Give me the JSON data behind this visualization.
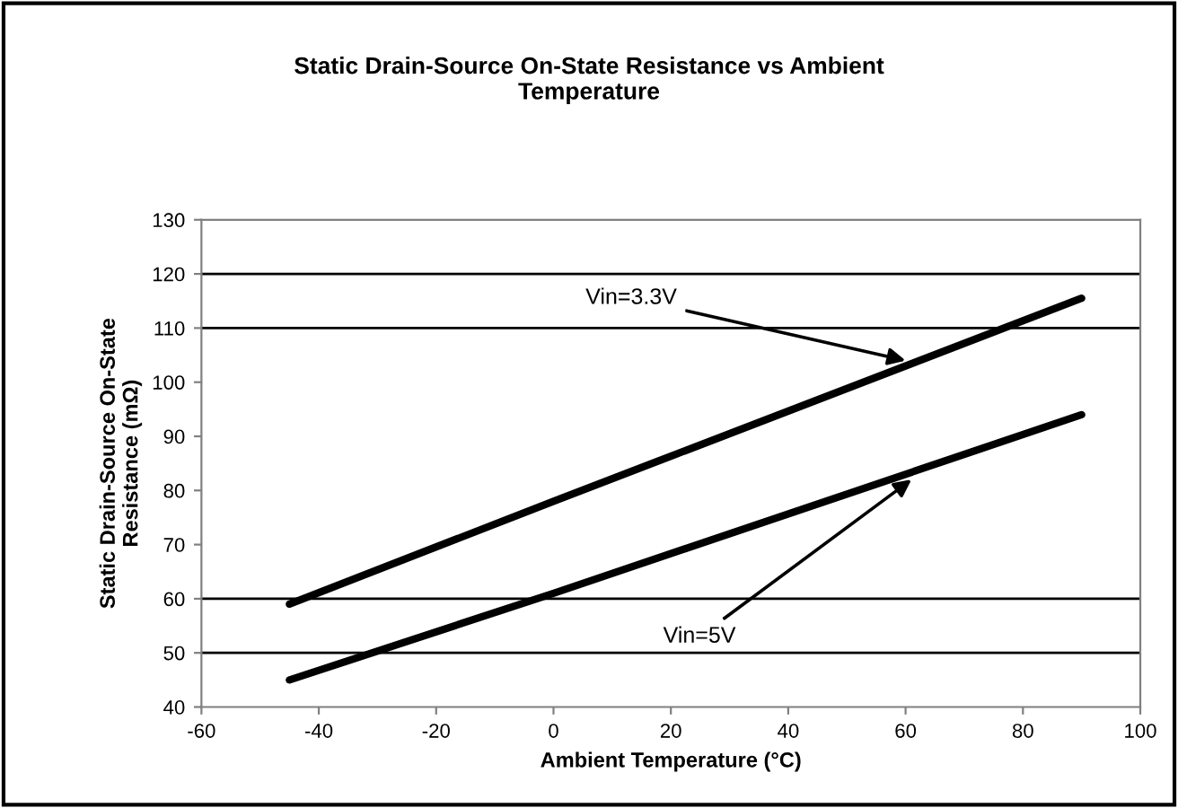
{
  "chart_data": {
    "type": "line",
    "title": "Static Drain-Source On-State Resistance vs Ambient\nTemperature",
    "xlabel": "Ambient Temperature (°C)",
    "ylabel": "Static Drain-Source On-State\nResistance (mΩ)",
    "series": [
      {
        "color": "#000000",
        "x": [
          -45,
          0,
          90
        ],
        "values": [
          59,
          78,
          115.5
        ]
      },
      {
        "color": "#000000",
        "x": [
          -45,
          0,
          90
        ],
        "values": [
          45,
          61,
          94
        ]
      }
    ],
    "annotations": [
      {
        "text": "Vin=3.3V",
        "x": 60,
        "y": 104
      },
      {
        "text": "Vin=5V",
        "x": 61,
        "y": 82
      }
    ],
    "ref_lines": [
      {
        "axis": "y",
        "value": 50,
        "color": "#000000"
      },
      {
        "axis": "y",
        "value": 60,
        "color": "#000000"
      },
      {
        "axis": "y",
        "value": 110,
        "color": "#000000"
      },
      {
        "axis": "y",
        "value": 120,
        "color": "#000000"
      }
    ],
    "xlim": [
      -60,
      100
    ],
    "xticks": [
      -60,
      -40,
      -20,
      0,
      20,
      40,
      60,
      80,
      100
    ],
    "ylim": [
      40,
      130
    ],
    "yticks": [
      40,
      50,
      60,
      70,
      80,
      90,
      100,
      110,
      120,
      130
    ],
    "grid": false,
    "legend": false,
    "marker": "none",
    "line_style": "solid"
  }
}
